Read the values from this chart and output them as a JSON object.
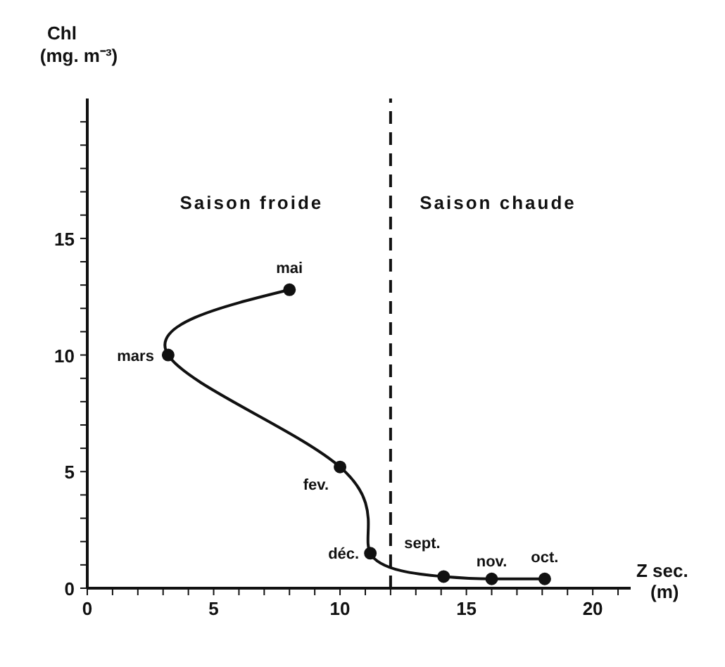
{
  "chart_data": {
    "type": "line",
    "xlabel": "Z sec. (m)",
    "ylabel": "Chl (mg. m⁻³)",
    "series": [
      {
        "color": "#111111",
        "x": [
          8.0,
          3.2,
          10.0,
          11.2,
          14.1,
          16.0,
          18.1
        ],
        "values": [
          12.8,
          10.0,
          5.2,
          1.5,
          0.5,
          0.4,
          0.4
        ]
      }
    ],
    "marker": "circle",
    "line_style": "solid",
    "xlim": [
      0,
      21.5
    ],
    "xticks": [
      0,
      {
        "value": 1,
        "label": null
      },
      {
        "value": 2,
        "label": null
      },
      {
        "value": 3,
        "label": null
      },
      {
        "value": 4,
        "label": null
      },
      5,
      {
        "value": 6,
        "label": null
      },
      {
        "value": 7,
        "label": null
      },
      {
        "value": 8,
        "label": null
      },
      {
        "value": 9,
        "label": null
      },
      10,
      {
        "value": 11,
        "label": null
      },
      {
        "value": 12,
        "label": null
      },
      {
        "value": 13,
        "label": null
      },
      {
        "value": 14,
        "label": null
      },
      15,
      {
        "value": 16,
        "label": null
      },
      {
        "value": 17,
        "label": null
      },
      {
        "value": 18,
        "label": null
      },
      {
        "value": 19,
        "label": null
      },
      20,
      {
        "value": 21,
        "label": null
      }
    ],
    "ylim": [
      0,
      21
    ],
    "yticks": [
      0,
      {
        "value": 1,
        "label": null
      },
      {
        "value": 2,
        "label": null
      },
      {
        "value": 3,
        "label": null
      },
      {
        "value": 4,
        "label": null
      },
      5,
      {
        "value": 6,
        "label": null
      },
      {
        "value": 7,
        "label": null
      },
      {
        "value": 8,
        "label": null
      },
      {
        "value": 9,
        "label": null
      },
      10,
      {
        "value": 11,
        "label": null
      },
      {
        "value": 12,
        "label": null
      },
      {
        "value": 13,
        "label": null
      },
      {
        "value": 14,
        "label": null
      },
      15,
      {
        "value": 16,
        "label": null
      },
      {
        "value": 17,
        "label": null
      },
      {
        "value": 18,
        "label": null
      },
      {
        "value": 19,
        "label": null
      },
      {
        "value": 20,
        "label": null
      }
    ],
    "ref_lines": [
      {
        "axis": "x",
        "value": 12,
        "line_style": "dashed",
        "color": "#111111"
      }
    ],
    "annotations": [
      "Saison froide",
      "Saison chaude",
      {
        "text": "mai",
        "x": 8.0,
        "y": 12.8
      },
      {
        "text": "mars",
        "x": 3.2,
        "y": 10.0
      },
      {
        "text": "fev.",
        "x": 10.0,
        "y": 5.2
      },
      {
        "text": "déc.",
        "x": 11.2,
        "y": 1.5
      },
      {
        "text": "sept.",
        "x": 14.1,
        "y": 0.5
      },
      {
        "text": "nov.",
        "x": 16.0,
        "y": 0.4
      },
      {
        "text": "oct.",
        "x": 18.1,
        "y": 0.4
      }
    ]
  }
}
